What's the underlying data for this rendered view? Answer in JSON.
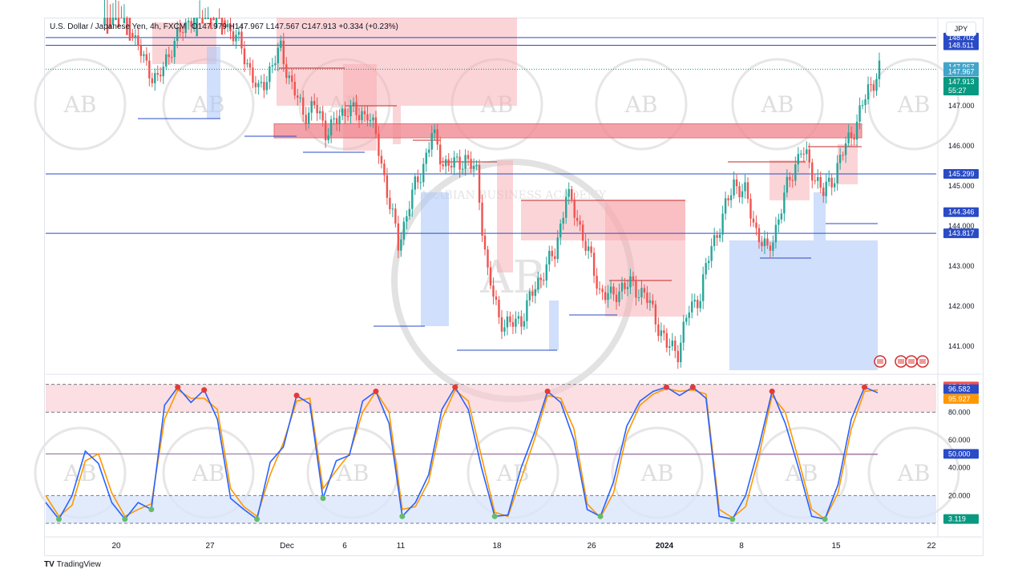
{
  "header": {
    "symbol": "U.S. Dollar / Japanese Yen, 4h, FXCM",
    "ohlc": "O147.979 H147.967 L147.567 C147.913 +0.334 (+0.23%)"
  },
  "currency_button": "JPY",
  "brand": "TradingView",
  "watermark_text": "AB",
  "watermark_caption": "ARABIAN BUSINESS ACADEMY",
  "colors": {
    "up": "#26a69a",
    "down": "#ef5350",
    "hline": "#2a4bc6",
    "supply": "#f7a9b0",
    "demand": "#a9c4f7",
    "k": "#2962ff",
    "d": "#ff9800"
  },
  "price_tags": [
    {
      "label": "148.702",
      "value": 148.702,
      "color": "#2a4bc6"
    },
    {
      "label": "148.511",
      "value": 148.511,
      "color": "#2a4bc6"
    },
    {
      "label": "147.967",
      "value": 147.967,
      "color": "#42a5c9"
    },
    {
      "label": "147.967",
      "value": 147.85,
      "color": "#42a5c9"
    },
    {
      "label": "147.913",
      "value": 147.6,
      "color": "#089981"
    },
    {
      "label": "55:27",
      "value": 147.38,
      "color": "#089981"
    },
    {
      "label": "145.299",
      "value": 145.299,
      "color": "#2a4bc6"
    },
    {
      "label": "144.346",
      "value": 144.346,
      "color": "#2a4bc6"
    },
    {
      "label": "143.817",
      "value": 143.817,
      "color": "#2a4bc6"
    }
  ],
  "osc_tags": [
    {
      "label": "97.298",
      "value": 98.5,
      "color": "#ef5350"
    },
    {
      "label": "96.582",
      "value": 96.582,
      "color": "#2a4bc6"
    },
    {
      "label": "95.927",
      "value": 89.5,
      "color": "#ff9800"
    },
    {
      "label": "50.000",
      "value": 50,
      "color": "#2a4bc6"
    },
    {
      "label": "3.119",
      "value": 3.119,
      "color": "#089981"
    }
  ],
  "chart_data": [
    {
      "type": "candlestick",
      "title": "U.S. Dollar / Japanese Yen, 4h, FXCM",
      "x_ticks": [
        "20",
        "27",
        "Dec",
        "6",
        "11",
        "18",
        "26",
        "2024",
        "8",
        "15",
        "22"
      ],
      "y_ticks": [
        "147.000",
        "146.000",
        "145.000",
        "144.000",
        "143.000",
        "142.000",
        "141.000"
      ],
      "ylim": [
        140.4,
        149.2
      ],
      "horizontal_levels": [
        148.702,
        148.511,
        145.299,
        143.817
      ],
      "supply_zone": [
        146.2,
        146.55
      ],
      "price_path": [
        [
          0,
          150.2
        ],
        [
          8,
          149.6
        ],
        [
          12,
          148.6
        ],
        [
          16,
          148.0
        ],
        [
          20,
          147.6
        ],
        [
          25,
          148.5
        ],
        [
          30,
          149.0
        ],
        [
          36,
          149.7
        ],
        [
          40,
          149.5
        ],
        [
          44,
          149.1
        ],
        [
          48,
          148.7
        ],
        [
          52,
          148.1
        ],
        [
          56,
          147.3
        ],
        [
          60,
          147.9
        ],
        [
          64,
          148.4
        ],
        [
          68,
          147.5
        ],
        [
          72,
          146.8
        ],
        [
          76,
          147.0
        ],
        [
          80,
          146.4
        ],
        [
          84,
          146.6
        ],
        [
          88,
          147.0
        ],
        [
          92,
          146.7
        ],
        [
          95,
          146.9
        ],
        [
          98,
          146.2
        ],
        [
          102,
          144.9
        ],
        [
          106,
          143.5
        ],
        [
          110,
          144.6
        ],
        [
          114,
          145.3
        ],
        [
          118,
          146.3
        ],
        [
          122,
          145.6
        ],
        [
          126,
          145.5
        ],
        [
          130,
          145.7
        ],
        [
          134,
          145.3
        ],
        [
          138,
          142.8
        ],
        [
          142,
          141.7
        ],
        [
          146,
          141.5
        ],
        [
          150,
          141.7
        ],
        [
          154,
          142.3
        ],
        [
          158,
          142.9
        ],
        [
          162,
          143.3
        ],
        [
          166,
          144.8
        ],
        [
          170,
          144.2
        ],
        [
          174,
          143.3
        ],
        [
          178,
          142.4
        ],
        [
          182,
          142.2
        ],
        [
          186,
          142.5
        ],
        [
          190,
          142.5
        ],
        [
          194,
          142.3
        ],
        [
          198,
          141.7
        ],
        [
          202,
          141.0
        ],
        [
          206,
          140.9
        ],
        [
          210,
          141.9
        ],
        [
          214,
          142.3
        ],
        [
          218,
          143.5
        ],
        [
          222,
          144.2
        ],
        [
          226,
          145.1
        ],
        [
          230,
          144.8
        ],
        [
          234,
          143.9
        ],
        [
          238,
          143.3
        ],
        [
          242,
          144.2
        ],
        [
          246,
          145.2
        ],
        [
          250,
          145.9
        ],
        [
          254,
          145.4
        ],
        [
          258,
          144.8
        ],
        [
          262,
          145.3
        ],
        [
          266,
          146.0
        ],
        [
          270,
          146.6
        ],
        [
          274,
          147.4
        ],
        [
          278,
          147.9
        ]
      ]
    },
    {
      "type": "line",
      "title": "",
      "ylim": [
        0,
        100
      ],
      "y_ticks": [
        "80.000",
        "60.000",
        "40.000",
        "20.000"
      ],
      "bands": [
        20,
        80
      ],
      "midline": 50,
      "series": [
        {
          "values": [
            15,
            3,
            20,
            52,
            43,
            15,
            3,
            15,
            10,
            85,
            98,
            87,
            96,
            75,
            18,
            10,
            3,
            44,
            55,
            92,
            86,
            18,
            45,
            49,
            88,
            95,
            72,
            5,
            15,
            35,
            82,
            98,
            82,
            40,
            5,
            6,
            40,
            65,
            95,
            87,
            60,
            10,
            5,
            30,
            70,
            88,
            95,
            98,
            92,
            98,
            90,
            5,
            3,
            20,
            55,
            95,
            72,
            40,
            5,
            3,
            28,
            75,
            98,
            94
          ]
        },
        {
          "values": [
            20,
            5,
            13,
            45,
            50,
            22,
            5,
            10,
            14,
            75,
            96,
            90,
            90,
            82,
            25,
            12,
            5,
            35,
            58,
            88,
            90,
            25,
            38,
            50,
            80,
            95,
            80,
            10,
            12,
            30,
            75,
            96,
            88,
            48,
            8,
            5,
            32,
            60,
            92,
            90,
            68,
            14,
            4,
            22,
            64,
            85,
            93,
            97,
            95,
            96,
            93,
            10,
            4,
            12,
            48,
            92,
            80,
            46,
            10,
            3,
            22,
            68,
            95,
            96
          ]
        }
      ],
      "x": [
        0,
        4,
        8,
        12,
        16,
        20,
        24,
        28,
        32,
        36,
        40,
        44,
        48,
        52,
        56,
        60,
        64,
        68,
        72,
        76,
        80,
        84,
        88,
        92,
        96,
        100,
        104,
        108,
        112,
        116,
        120,
        124,
        128,
        132,
        136,
        140,
        144,
        148,
        152,
        156,
        160,
        164,
        168,
        172,
        176,
        180,
        184,
        188,
        192,
        196,
        200,
        204,
        208,
        212,
        216,
        220,
        224,
        228,
        232,
        236,
        240,
        244,
        248,
        252
      ]
    }
  ]
}
